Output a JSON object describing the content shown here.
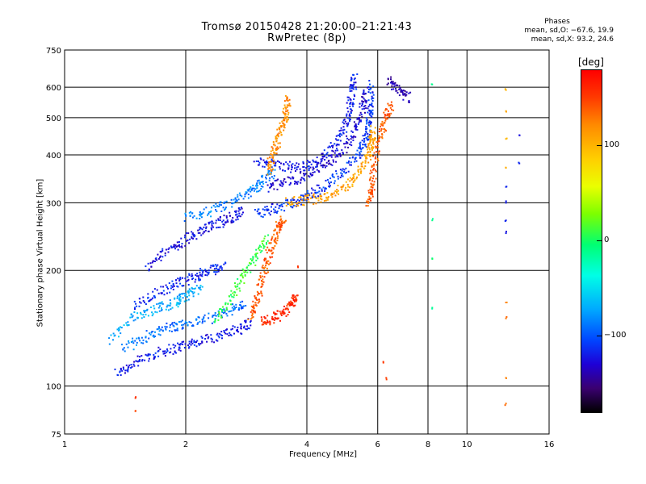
{
  "chart_data": {
    "type": "scatter",
    "title": "Tromsø 20150428 21:20:00–21:21:43",
    "subtitle": "RwPretec (8p)",
    "xlabel": "Frequency [MHz]",
    "ylabel": "Stationary phase Virtual Height [km]",
    "x_scale": "log",
    "y_scale": "log",
    "xlim": [
      1,
      16
    ],
    "ylim": [
      75,
      750
    ],
    "x_ticks": [
      1,
      2,
      4,
      6,
      8,
      10,
      16
    ],
    "x_tick_labels": [
      "1",
      "2",
      "4",
      "6",
      "8",
      "10",
      "16"
    ],
    "y_ticks": [
      75,
      100,
      200,
      300,
      400,
      500,
      600,
      750
    ],
    "y_tick_labels": [
      "75",
      "100",
      "200",
      "300",
      "400",
      "500",
      "600",
      "750"
    ],
    "grid": true,
    "stats": {
      "heading": "Phases",
      "line1": "mean, sd,O: −67.6, 19.9",
      "line2": "mean, sd,X:  93.2, 24.6"
    },
    "colorbar": {
      "unit": "[deg]",
      "range": [
        -180,
        180
      ],
      "ticks": [
        100,
        0,
        -100
      ],
      "tick_labels": [
        "100",
        "0",
        "−100"
      ]
    },
    "traces": [
      {
        "phase": -120,
        "points": [
          [
            1.35,
            108
          ],
          [
            1.5,
            115
          ],
          [
            1.7,
            122
          ],
          [
            1.9,
            126
          ],
          [
            2.1,
            130
          ],
          [
            2.4,
            135
          ],
          [
            2.7,
            140
          ],
          [
            2.9,
            147
          ]
        ]
      },
      {
        "phase": -90,
        "points": [
          [
            1.4,
            125
          ],
          [
            1.6,
            135
          ],
          [
            1.8,
            142
          ],
          [
            2.0,
            145
          ],
          [
            2.3,
            150
          ],
          [
            2.6,
            158
          ],
          [
            2.8,
            163
          ]
        ]
      },
      {
        "phase": -70,
        "points": [
          [
            1.3,
            132
          ],
          [
            1.5,
            152
          ],
          [
            1.7,
            160
          ],
          [
            1.9,
            165
          ],
          [
            2.0,
            172
          ],
          [
            2.2,
            180
          ]
        ]
      },
      {
        "phase": -115,
        "points": [
          [
            1.5,
            162
          ],
          [
            1.7,
            175
          ],
          [
            1.9,
            185
          ],
          [
            2.1,
            192
          ],
          [
            2.3,
            200
          ],
          [
            2.5,
            205
          ]
        ]
      },
      {
        "phase": -125,
        "points": [
          [
            1.6,
            205
          ],
          [
            1.8,
            225
          ],
          [
            2.0,
            240
          ],
          [
            2.2,
            255
          ],
          [
            2.4,
            265
          ],
          [
            2.6,
            275
          ],
          [
            2.8,
            285
          ]
        ]
      },
      {
        "phase": -85,
        "points": [
          [
            2.0,
            275
          ],
          [
            2.3,
            285
          ],
          [
            2.6,
            300
          ],
          [
            2.9,
            320
          ],
          [
            3.1,
            340
          ],
          [
            3.3,
            360
          ]
        ]
      },
      {
        "phase": -110,
        "points": [
          [
            3.0,
            280
          ],
          [
            3.3,
            290
          ],
          [
            3.7,
            300
          ],
          [
            4.0,
            310
          ],
          [
            4.4,
            330
          ],
          [
            4.9,
            360
          ],
          [
            5.4,
            400
          ],
          [
            5.6,
            440
          ],
          [
            5.7,
            480
          ],
          [
            5.75,
            530
          ],
          [
            5.8,
            620
          ]
        ]
      },
      {
        "phase": -130,
        "points": [
          [
            3.2,
            330
          ],
          [
            3.6,
            340
          ],
          [
            4.0,
            355
          ],
          [
            4.5,
            380
          ],
          [
            5.0,
            420
          ],
          [
            5.3,
            470
          ],
          [
            5.5,
            530
          ],
          [
            5.6,
            600
          ]
        ]
      },
      {
        "phase": -120,
        "points": [
          [
            3.0,
            385
          ],
          [
            3.4,
            375
          ],
          [
            3.8,
            370
          ],
          [
            4.2,
            380
          ],
          [
            4.6,
            410
          ],
          [
            4.9,
            460
          ],
          [
            5.1,
            520
          ],
          [
            5.2,
            590
          ],
          [
            5.25,
            640
          ]
        ]
      },
      {
        "phase": 110,
        "points": [
          [
            3.6,
            300
          ],
          [
            4.0,
            305
          ],
          [
            4.5,
            312
          ],
          [
            5.0,
            330
          ],
          [
            5.4,
            360
          ],
          [
            5.7,
            400
          ],
          [
            5.8,
            430
          ],
          [
            5.85,
            470
          ]
        ]
      },
      {
        "phase": 120,
        "points": [
          [
            3.2,
            360
          ],
          [
            3.3,
            400
          ],
          [
            3.4,
            440
          ],
          [
            3.5,
            480
          ],
          [
            3.55,
            520
          ],
          [
            3.6,
            560
          ]
        ]
      },
      {
        "phase": 140,
        "points": [
          [
            2.9,
            152
          ],
          [
            3.0,
            165
          ],
          [
            3.1,
            190
          ],
          [
            3.2,
            215
          ],
          [
            3.3,
            240
          ],
          [
            3.4,
            260
          ],
          [
            3.5,
            270
          ]
        ]
      },
      {
        "phase": 160,
        "points": [
          [
            3.1,
            147
          ],
          [
            3.3,
            150
          ],
          [
            3.5,
            155
          ],
          [
            3.7,
            165
          ],
          [
            3.75,
            175
          ]
        ]
      },
      {
        "phase": 10,
        "points": [
          [
            2.4,
            150
          ],
          [
            2.6,
            170
          ],
          [
            2.8,
            195
          ],
          [
            3.0,
            220
          ],
          [
            3.2,
            245
          ]
        ]
      },
      {
        "phase": 140,
        "points": [
          [
            5.7,
            300
          ],
          [
            5.8,
            330
          ],
          [
            5.9,
            380
          ],
          [
            6.1,
            450
          ],
          [
            6.3,
            500
          ],
          [
            6.5,
            540
          ]
        ]
      },
      {
        "phase": -140,
        "points": [
          [
            6.4,
            620
          ],
          [
            6.8,
            590
          ],
          [
            7.2,
            560
          ]
        ]
      },
      {
        "phase": 100,
        "points": [
          [
            12.5,
            590
          ],
          [
            12.5,
            520
          ],
          [
            12.5,
            440
          ],
          [
            12.5,
            370
          ]
        ]
      },
      {
        "phase": -120,
        "points": [
          [
            12.5,
            330
          ],
          [
            12.5,
            300
          ],
          [
            12.5,
            270
          ],
          [
            12.5,
            250
          ],
          [
            13.5,
            450
          ],
          [
            13.5,
            380
          ]
        ]
      },
      {
        "phase": 130,
        "points": [
          [
            12.5,
            165
          ],
          [
            12.5,
            150
          ],
          [
            12.5,
            105
          ],
          [
            12.5,
            90
          ]
        ]
      },
      {
        "phase": -10,
        "points": [
          [
            8.2,
            610
          ],
          [
            8.2,
            270
          ],
          [
            8.2,
            215
          ],
          [
            8.2,
            160
          ]
        ]
      },
      {
        "phase": 150,
        "points": [
          [
            1.5,
            93
          ],
          [
            1.5,
            86
          ],
          [
            6.2,
            115
          ],
          [
            6.3,
            105
          ],
          [
            3.8,
            205
          ]
        ]
      }
    ]
  }
}
